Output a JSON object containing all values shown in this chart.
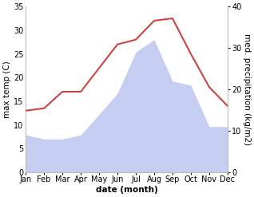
{
  "months": [
    "Jan",
    "Feb",
    "Mar",
    "Apr",
    "May",
    "Jun",
    "Jul",
    "Aug",
    "Sep",
    "Oct",
    "Nov",
    "Dec"
  ],
  "temperature": [
    13,
    13.5,
    17,
    17,
    22,
    27,
    28,
    32,
    32.5,
    25,
    18,
    14
  ],
  "precipitation": [
    9,
    8,
    8,
    9,
    14,
    19,
    29,
    32,
    22,
    21,
    11,
    11
  ],
  "temp_color": "#cc4444",
  "precip_color": "#c5cef0",
  "left_ylim": [
    0,
    35
  ],
  "right_ylim": [
    0,
    40
  ],
  "left_yticks": [
    0,
    5,
    10,
    15,
    20,
    25,
    30,
    35
  ],
  "right_yticks": [
    0,
    10,
    20,
    30,
    40
  ],
  "xlabel": "date (month)",
  "ylabel_left": "max temp (C)",
  "ylabel_right": "med. precipitation (kg/m2)",
  "bg_color": "#ffffff",
  "label_fontsize": 7.5,
  "tick_fontsize": 7,
  "axis_color": "#999999",
  "spine_color": "#bbbbbb"
}
